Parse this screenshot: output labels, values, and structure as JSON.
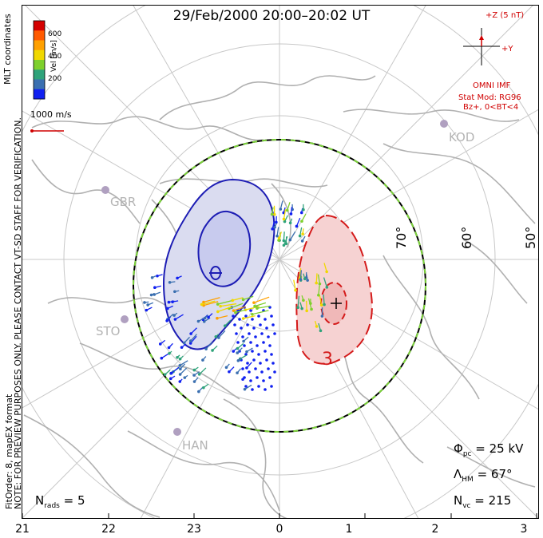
{
  "title": "29/Feb/2000  20:00–20:02  UT",
  "side_note": "NOTE: FOR PREVIEW PURPOSES ONLY. PLEASE CONTACT VT-SD STAFF FOR VERIFICATION.",
  "fit_order": "FitOrder: 8, mapEX format",
  "coords": "MLT coordinates",
  "colorbar": {
    "label": "Vel [m/s]",
    "ticks": [
      "600",
      "400",
      "200"
    ],
    "colors": [
      "#d40000",
      "#ff5a00",
      "#ffa000",
      "#f0d800",
      "#7ed02c",
      "#2fa37a",
      "#3a6fb0",
      "#1020f0"
    ]
  },
  "ref_vector": "1000 m/s",
  "imf": {
    "z": "+Z (5 nT)",
    "y": "+Y",
    "source": "OMNI IMF",
    "model": "Stat Mod: RG96",
    "cond": "Bz+, 0<BT<4"
  },
  "latitudes": [
    "70°",
    "60°",
    "50°"
  ],
  "sites": [
    "GBR",
    "KOD",
    "STO",
    "HAN"
  ],
  "contour_label": "3",
  "stats": {
    "phi_pc": "= 25 kV",
    "lambda_hm": "= 67°",
    "n_vc": "= 215",
    "n_rads": "= 5"
  },
  "mlt_labels": [
    "21",
    "22",
    "23",
    "0",
    "1",
    "2",
    "3"
  ],
  "colors": {
    "negative_cell": "#1d1db4",
    "positive_cell": "#d41a1a",
    "hmb": "#7cd33a"
  }
}
